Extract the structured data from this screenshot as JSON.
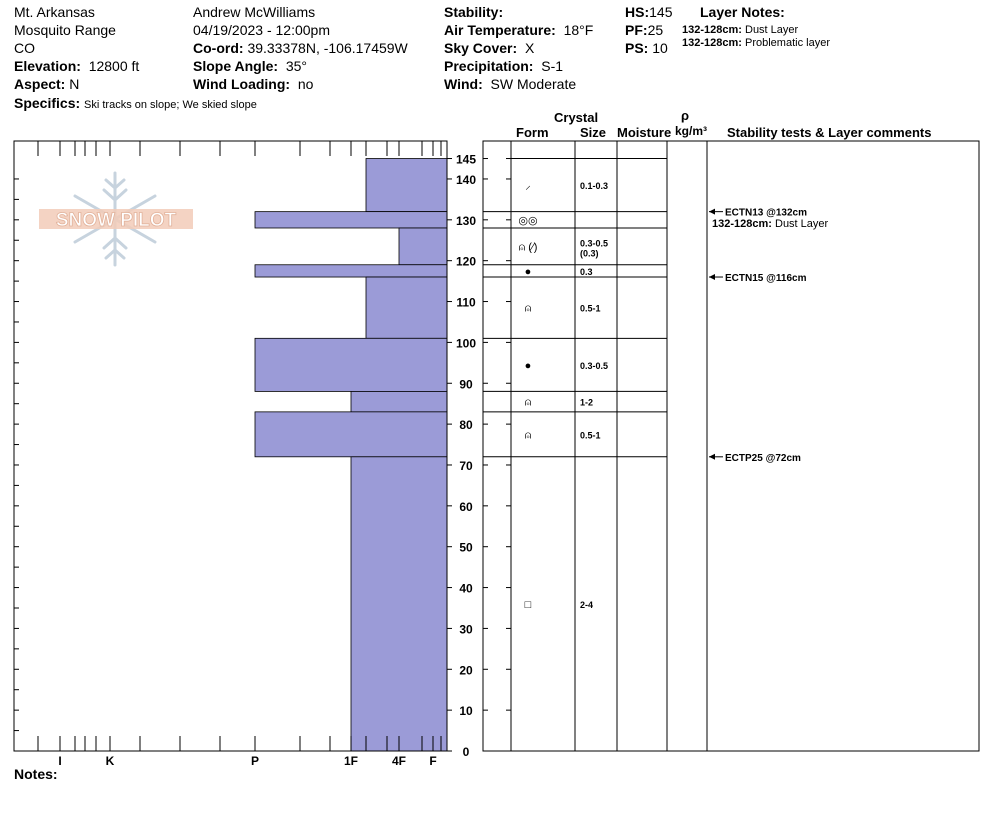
{
  "header": {
    "location": "Mt. Arkansas",
    "range": "Mosquito Range",
    "state": "CO",
    "elevation_label": "Elevation:",
    "elevation": "12800 ft",
    "aspect_label": "Aspect:",
    "aspect": "N",
    "specifics_label": "Specifics:",
    "specifics": "Ski tracks on slope; We skied slope",
    "observer": "Andrew McWilliams",
    "datetime": "04/19/2023 - 12:00pm",
    "coord_label": "Co-ord:",
    "coord": "39.33378N, -106.17459W",
    "slope_label": "Slope Angle:",
    "slope": "35°",
    "wind_loading_label": "Wind Loading:",
    "wind_loading": "no",
    "stability_label": "Stability:",
    "stability": "",
    "air_temp_label": "Air Temperature:",
    "air_temp": "18°F",
    "sky_label": "Sky Cover:",
    "sky": "X",
    "precip_label": "Precipitation:",
    "precip": "S-1",
    "wind_label": "Wind:",
    "wind": "SW Moderate",
    "hs_label": "HS:",
    "hs": "145",
    "pf_label": "PF:",
    "pf": "25",
    "ps_label": "PS:",
    "ps": "10",
    "layer_notes_label": "Layer Notes:",
    "layer_notes": [
      {
        "range": "132-128cm:",
        "text": "Dust Layer"
      },
      {
        "range": "132-128cm:",
        "text": "Problematic layer"
      }
    ]
  },
  "columns": {
    "crystal": "Crystal",
    "form": "Form",
    "size": "Size",
    "moisture": "Moisture",
    "rho": "ρ",
    "density_unit": "kg/m³",
    "comments": "Stability tests & Layer comments"
  },
  "logo_text": "SNOW PILOT",
  "notes_label": "Notes:",
  "chart_data": {
    "type": "bar",
    "title": "",
    "y_axis": {
      "range": [
        0,
        150
      ],
      "ticks": [
        0,
        10,
        20,
        30,
        40,
        50,
        60,
        70,
        80,
        90,
        100,
        110,
        120,
        130,
        140,
        145
      ]
    },
    "x_axis": {
      "labels": [
        "I",
        "K",
        "P",
        "1F",
        "4F",
        "F"
      ],
      "direction": "hardness increases right-to-left"
    },
    "hardness_layers": [
      {
        "top": 145,
        "bottom": 132,
        "hardness": "1F+"
      },
      {
        "top": 132,
        "bottom": 128,
        "hardness": "P"
      },
      {
        "top": 128,
        "bottom": 119,
        "hardness": "4F"
      },
      {
        "top": 119,
        "bottom": 116,
        "hardness": "P"
      },
      {
        "top": 116,
        "bottom": 101,
        "hardness": "1F+"
      },
      {
        "top": 101,
        "bottom": 88,
        "hardness": "P"
      },
      {
        "top": 88,
        "bottom": 83,
        "hardness": "1F"
      },
      {
        "top": 83,
        "bottom": 72,
        "hardness": "P"
      },
      {
        "top": 72,
        "bottom": 0,
        "hardness": "1F"
      }
    ],
    "layers": [
      {
        "top": 145,
        "bottom": 132,
        "form": "⸝",
        "size": "0.1-0.3",
        "size2": ""
      },
      {
        "top": 132,
        "bottom": 128,
        "form": "◎◎",
        "size": "",
        "size2": ""
      },
      {
        "top": 128,
        "bottom": 119,
        "form": "⍝ (⁄)",
        "size": "0.3-0.5",
        "size2": "(0.3)"
      },
      {
        "top": 119,
        "bottom": 116,
        "form": "●",
        "size": "0.3",
        "size2": ""
      },
      {
        "top": 116,
        "bottom": 101,
        "form": "⍝",
        "size": "0.5-1",
        "size2": ""
      },
      {
        "top": 101,
        "bottom": 88,
        "form": "●",
        "size": "0.3-0.5",
        "size2": ""
      },
      {
        "top": 88,
        "bottom": 83,
        "form": "⍝",
        "size": "1-2",
        "size2": ""
      },
      {
        "top": 83,
        "bottom": 72,
        "form": "⍝",
        "size": "0.5-1",
        "size2": ""
      },
      {
        "top": 72,
        "bottom": 0,
        "form": "□",
        "size": "2-4",
        "size2": ""
      }
    ],
    "stability_tests": [
      {
        "depth": 132,
        "text": "ECTN13 @132cm"
      },
      {
        "depth": 116,
        "text": "ECTN15 @116cm"
      },
      {
        "depth": 72,
        "text": "ECTP25 @72cm"
      }
    ],
    "layer_comments": [
      {
        "depth": 128.5,
        "range": "132-128cm:",
        "text": "Dust Layer"
      }
    ]
  }
}
